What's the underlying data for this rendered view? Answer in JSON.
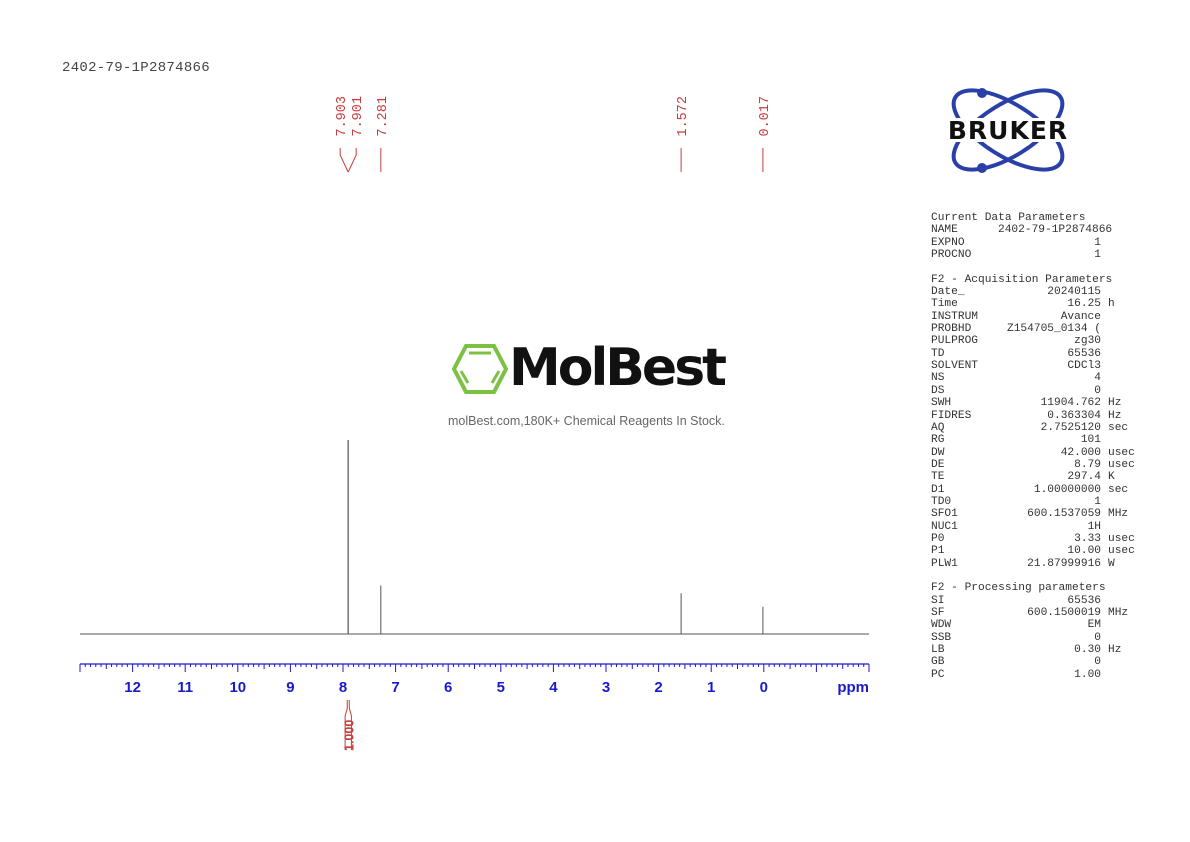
{
  "sample_title": "2402-79-1P2874866",
  "logos": {
    "bruker": "BRUKER",
    "molbest": "MolBest",
    "molbest_tagline": "molBest.com,180K+ Chemical Reagents In Stock."
  },
  "colors": {
    "axis": "#1a1acc",
    "peak_labels": "#c83c3c",
    "spectrum": "#555555",
    "bruker_blue": "#2b3fa8",
    "molbest_green": "#7dc142"
  },
  "parameters": {
    "current": {
      "heading": "Current Data Parameters",
      "rows": [
        {
          "label": "NAME",
          "value": "2402-79-1P2874866",
          "unit": ""
        },
        {
          "label": "EXPNO",
          "value": "1",
          "unit": ""
        },
        {
          "label": "PROCNO",
          "value": "1",
          "unit": ""
        }
      ]
    },
    "acquisition": {
      "heading": "F2 - Acquisition Parameters",
      "rows": [
        {
          "label": "Date_",
          "value": "20240115",
          "unit": ""
        },
        {
          "label": "Time",
          "value": "16.25",
          "unit": "h"
        },
        {
          "label": "INSTRUM",
          "value": "Avance",
          "unit": ""
        },
        {
          "label": "PROBHD",
          "value": "Z154705_0134 (",
          "unit": ""
        },
        {
          "label": "PULPROG",
          "value": "zg30",
          "unit": ""
        },
        {
          "label": "TD",
          "value": "65536",
          "unit": ""
        },
        {
          "label": "SOLVENT",
          "value": "CDCl3",
          "unit": ""
        },
        {
          "label": "NS",
          "value": "4",
          "unit": ""
        },
        {
          "label": "DS",
          "value": "0",
          "unit": ""
        },
        {
          "label": "SWH",
          "value": "11904.762",
          "unit": "Hz"
        },
        {
          "label": "FIDRES",
          "value": "0.363304",
          "unit": "Hz"
        },
        {
          "label": "AQ",
          "value": "2.7525120",
          "unit": "sec"
        },
        {
          "label": "RG",
          "value": "101",
          "unit": ""
        },
        {
          "label": "DW",
          "value": "42.000",
          "unit": "usec"
        },
        {
          "label": "DE",
          "value": "8.79",
          "unit": "usec"
        },
        {
          "label": "TE",
          "value": "297.4",
          "unit": "K"
        },
        {
          "label": "D1",
          "value": "1.00000000",
          "unit": "sec"
        },
        {
          "label": "TD0",
          "value": "1",
          "unit": ""
        },
        {
          "label": "SFO1",
          "value": "600.1537059",
          "unit": "MHz"
        },
        {
          "label": "NUC1",
          "value": "1H",
          "unit": ""
        },
        {
          "label": "P0",
          "value": "3.33",
          "unit": "usec"
        },
        {
          "label": "P1",
          "value": "10.00",
          "unit": "usec"
        },
        {
          "label": "PLW1",
          "value": "21.87999916",
          "unit": "W"
        }
      ]
    },
    "processing": {
      "heading": "F2 - Processing parameters",
      "rows": [
        {
          "label": "SI",
          "value": "65536",
          "unit": ""
        },
        {
          "label": "SF",
          "value": "600.1500019",
          "unit": "MHz"
        },
        {
          "label": "WDW",
          "value": "EM",
          "unit": ""
        },
        {
          "label": "SSB",
          "value": "0",
          "unit": ""
        },
        {
          "label": "LB",
          "value": "0.30",
          "unit": "Hz"
        },
        {
          "label": "GB",
          "value": "0",
          "unit": ""
        },
        {
          "label": "PC",
          "value": "1.00",
          "unit": ""
        }
      ]
    }
  },
  "chart_data": {
    "type": "line",
    "title": "",
    "xlabel": "ppm",
    "ylabel": "",
    "xlim": [
      13.0,
      -2.0
    ],
    "ylim": [
      0,
      100
    ],
    "x_ticks": [
      "12",
      "11",
      "10",
      "9",
      "8",
      "7",
      "6",
      "5",
      "4",
      "3",
      "2",
      "1",
      "0"
    ],
    "minor_tick_step": 0.1,
    "grid": false,
    "peaks": [
      {
        "ppm": 7.903,
        "intensity": 100
      },
      {
        "ppm": 7.901,
        "intensity": 100
      },
      {
        "ppm": 7.281,
        "intensity": 25
      },
      {
        "ppm": 1.572,
        "intensity": 21
      },
      {
        "ppm": 0.017,
        "intensity": 14
      }
    ],
    "peak_labels": [
      "7.903",
      "7.901",
      "7.281",
      "1.572",
      "0.017"
    ],
    "integrals": [
      {
        "from_ppm": 7.96,
        "to_ppm": 7.84,
        "value": "1.000"
      }
    ]
  }
}
